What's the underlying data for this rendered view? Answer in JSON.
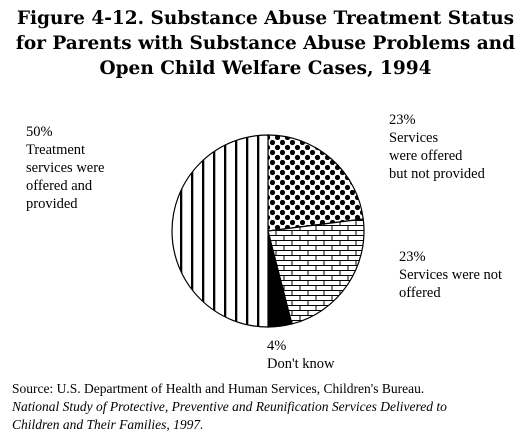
{
  "chart_data": {
    "type": "pie",
    "title": [
      "Figure 4-12.  Substance Abuse Treatment Status",
      "for Parents with Substance Abuse Problems and",
      "Open Child Welfare Cases, 1994"
    ],
    "slices": [
      {
        "value": 23,
        "pct_label": "23%",
        "label_lines": [
          "Services",
          "were offered",
          "but not provided"
        ],
        "pattern": "dots"
      },
      {
        "value": 23,
        "pct_label": "23%",
        "label_lines": [
          "Services were not",
          "offered"
        ],
        "pattern": "bricks"
      },
      {
        "value": 4,
        "pct_label": "4%",
        "label_lines": [
          "Don't know"
        ],
        "pattern": "solid"
      },
      {
        "value": 50,
        "pct_label": "50%",
        "label_lines": [
          "Treatment",
          "services were",
          "offered and",
          "provided"
        ],
        "pattern": "vertical-stripes"
      }
    ]
  },
  "source": {
    "line1": "Source:  U.S. Department of Health and Human Services, Children's Bureau.",
    "line2": "National Study of Protective, Preventive and Reunification Services Delivered to",
    "line3": "Children and Their Families, 1997."
  }
}
